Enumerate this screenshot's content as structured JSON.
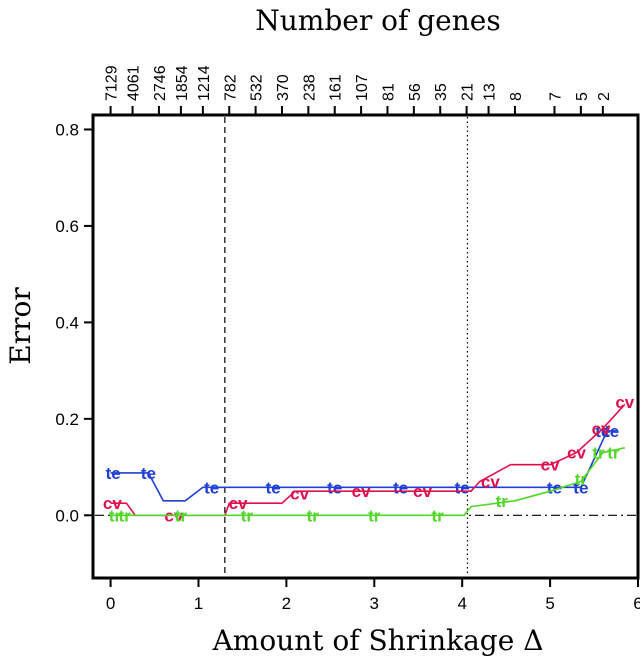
{
  "chart_data": {
    "type": "line",
    "title_top": "Number of genes",
    "xlabel": "Amount of Shrinkage Δ",
    "ylabel": "Error",
    "xlim": [
      -0.2,
      6.0
    ],
    "ylim": [
      -0.13,
      0.83
    ],
    "x_ticks": [
      0,
      1,
      2,
      3,
      4,
      5,
      6
    ],
    "y_ticks": [
      0.0,
      0.2,
      0.4,
      0.6,
      0.8
    ],
    "y_tick_labels": [
      "0.0",
      "0.2",
      "0.4",
      "0.6",
      "0.8"
    ],
    "top_ticks": [
      {
        "x": 0.0,
        "label": "7129"
      },
      {
        "x": 0.25,
        "label": "4061"
      },
      {
        "x": 0.55,
        "label": "2746"
      },
      {
        "x": 0.8,
        "label": "1854"
      },
      {
        "x": 1.05,
        "label": "1214"
      },
      {
        "x": 1.35,
        "label": "782"
      },
      {
        "x": 1.65,
        "label": "532"
      },
      {
        "x": 1.95,
        "label": "370"
      },
      {
        "x": 2.25,
        "label": "238"
      },
      {
        "x": 2.55,
        "label": "161"
      },
      {
        "x": 2.85,
        "label": "107"
      },
      {
        "x": 3.15,
        "label": "81"
      },
      {
        "x": 3.45,
        "label": "56"
      },
      {
        "x": 3.75,
        "label": "35"
      },
      {
        "x": 4.05,
        "label": "21"
      },
      {
        "x": 4.3,
        "label": "13"
      },
      {
        "x": 4.6,
        "label": "8"
      },
      {
        "x": 5.05,
        "label": "7"
      },
      {
        "x": 5.35,
        "label": "5"
      },
      {
        "x": 5.6,
        "label": "2"
      }
    ],
    "vlines": [
      {
        "x": 1.3,
        "style": "dashed"
      },
      {
        "x": 4.06,
        "style": "dotted"
      }
    ],
    "hline": {
      "y": 0.0,
      "style": "dashdot"
    },
    "series": [
      {
        "name": "te",
        "color": "#1f3fd6",
        "line": [
          [
            0.0,
            0.088
          ],
          [
            0.43,
            0.088
          ],
          [
            0.6,
            0.03
          ],
          [
            0.85,
            0.03
          ],
          [
            1.05,
            0.058
          ],
          [
            5.35,
            0.058
          ],
          [
            5.65,
            0.175
          ],
          [
            5.75,
            0.175
          ]
        ],
        "markers": [
          [
            0.03,
            0.088
          ],
          [
            0.43,
            0.088
          ],
          [
            1.15,
            0.058
          ],
          [
            1.85,
            0.058
          ],
          [
            2.55,
            0.058
          ],
          [
            3.3,
            0.058
          ],
          [
            4.0,
            0.058
          ],
          [
            5.05,
            0.058
          ],
          [
            5.35,
            0.058
          ],
          [
            5.6,
            0.175
          ],
          [
            5.7,
            0.175
          ]
        ]
      },
      {
        "name": "cv",
        "color": "#e0104f",
        "line": [
          [
            0.0,
            0.025
          ],
          [
            0.18,
            0.025
          ],
          [
            0.28,
            0.0
          ],
          [
            0.85,
            0.0
          ],
          [
            1.3,
            0.0
          ],
          [
            1.35,
            0.025
          ],
          [
            1.95,
            0.025
          ],
          [
            2.1,
            0.05
          ],
          [
            4.1,
            0.05
          ],
          [
            4.2,
            0.07
          ],
          [
            4.55,
            0.105
          ],
          [
            5.0,
            0.105
          ],
          [
            5.3,
            0.13
          ],
          [
            5.6,
            0.18
          ],
          [
            5.85,
            0.23
          ]
        ],
        "markers": [
          [
            0.02,
            0.025
          ],
          [
            0.72,
            0.0
          ],
          [
            1.45,
            0.025
          ],
          [
            2.15,
            0.045
          ],
          [
            2.85,
            0.05
          ],
          [
            3.55,
            0.05
          ],
          [
            4.32,
            0.07
          ],
          [
            5.0,
            0.105
          ],
          [
            5.3,
            0.13
          ],
          [
            5.58,
            0.18
          ],
          [
            5.85,
            0.235
          ]
        ]
      },
      {
        "name": "tr",
        "color": "#52d62a",
        "line": [
          [
            0.0,
            0.0
          ],
          [
            4.02,
            0.0
          ],
          [
            4.1,
            0.018
          ],
          [
            4.6,
            0.03
          ],
          [
            5.0,
            0.05
          ],
          [
            5.35,
            0.07
          ],
          [
            5.6,
            0.13
          ],
          [
            5.85,
            0.14
          ]
        ],
        "markers": [
          [
            0.05,
            0.0
          ],
          [
            0.16,
            0.0
          ],
          [
            0.8,
            0.0
          ],
          [
            1.55,
            0.0
          ],
          [
            2.3,
            0.0
          ],
          [
            3.0,
            0.0
          ],
          [
            3.72,
            0.0
          ],
          [
            4.45,
            0.03
          ],
          [
            5.35,
            0.075
          ],
          [
            5.55,
            0.13
          ],
          [
            5.72,
            0.13
          ]
        ]
      }
    ]
  }
}
